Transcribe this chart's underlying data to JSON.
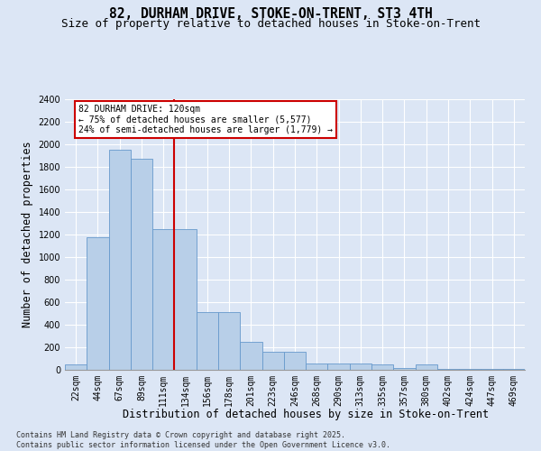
{
  "title1": "82, DURHAM DRIVE, STOKE-ON-TRENT, ST3 4TH",
  "title2": "Size of property relative to detached houses in Stoke-on-Trent",
  "xlabel": "Distribution of detached houses by size in Stoke-on-Trent",
  "ylabel": "Number of detached properties",
  "categories": [
    "22sqm",
    "44sqm",
    "67sqm",
    "89sqm",
    "111sqm",
    "134sqm",
    "156sqm",
    "178sqm",
    "201sqm",
    "223sqm",
    "246sqm",
    "268sqm",
    "290sqm",
    "313sqm",
    "335sqm",
    "357sqm",
    "380sqm",
    "402sqm",
    "424sqm",
    "447sqm",
    "469sqm"
  ],
  "values": [
    50,
    1180,
    1950,
    1870,
    1250,
    1250,
    510,
    510,
    250,
    160,
    160,
    60,
    60,
    60,
    50,
    20,
    50,
    5,
    5,
    5,
    5
  ],
  "bar_color": "#b8cfe8",
  "bar_edge_color": "#6699cc",
  "bg_color": "#dce6f5",
  "grid_color": "#ffffff",
  "red_line_index": 5,
  "annotation_text": "82 DURHAM DRIVE: 120sqm\n← 75% of detached houses are smaller (5,577)\n24% of semi-detached houses are larger (1,779) →",
  "annotation_box_color": "#ffffff",
  "annotation_box_edge": "#cc0000",
  "red_line_color": "#cc0000",
  "ylim": [
    0,
    2400
  ],
  "yticks": [
    0,
    200,
    400,
    600,
    800,
    1000,
    1200,
    1400,
    1600,
    1800,
    2000,
    2200,
    2400
  ],
  "footer1": "Contains HM Land Registry data © Crown copyright and database right 2025.",
  "footer2": "Contains public sector information licensed under the Open Government Licence v3.0.",
  "title_fontsize": 10.5,
  "subtitle_fontsize": 9,
  "tick_fontsize": 7,
  "label_fontsize": 8.5
}
